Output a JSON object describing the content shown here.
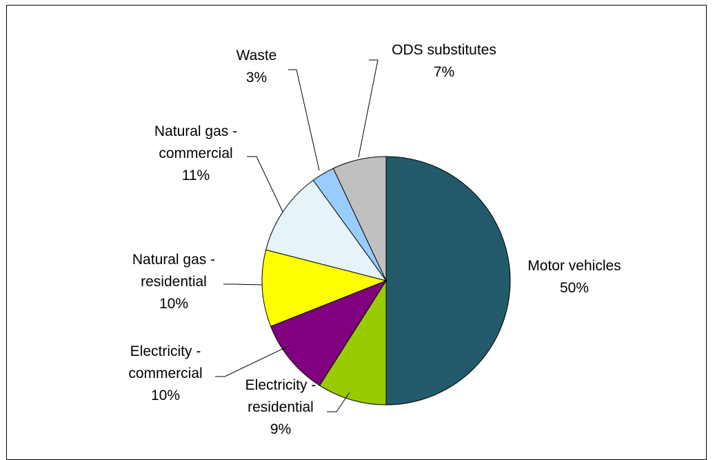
{
  "chart_data": {
    "type": "pie",
    "title": "",
    "slices": [
      {
        "name": "Motor vehicles",
        "value": 50,
        "label": "50%",
        "color": "#225A6A"
      },
      {
        "name": "Electricity - residential",
        "value": 9,
        "label": "9%",
        "color": "#99CC00"
      },
      {
        "name": "Electricity - commercial",
        "value": 10,
        "label": "10%",
        "color": "#800080"
      },
      {
        "name": "Natural gas - residential",
        "value": 10,
        "label": "10%",
        "color": "#FFFF00"
      },
      {
        "name": "Natural gas - commercial",
        "value": 11,
        "label": "11%",
        "color": "#E6F4F7"
      },
      {
        "name": "Waste",
        "value": 3,
        "label": "3%",
        "color": "#99CCFF"
      },
      {
        "name": "ODS substitutes",
        "value": 7,
        "label": "7%",
        "color": "#C0C0C0"
      }
    ],
    "label_lines": [
      [
        "Motor vehicles",
        "50%"
      ],
      [
        "Electricity -",
        "residential",
        "9%"
      ],
      [
        "Electricity -",
        "commercial",
        "10%"
      ],
      [
        "Natural gas -",
        "residential",
        "10%"
      ],
      [
        "Natural gas -",
        "commercial",
        "11%"
      ],
      [
        "Waste",
        "3%"
      ],
      [
        "ODS substitutes",
        "7%"
      ]
    ],
    "legend": "none",
    "start_angle": "12 o'clock",
    "direction": "clockwise"
  }
}
